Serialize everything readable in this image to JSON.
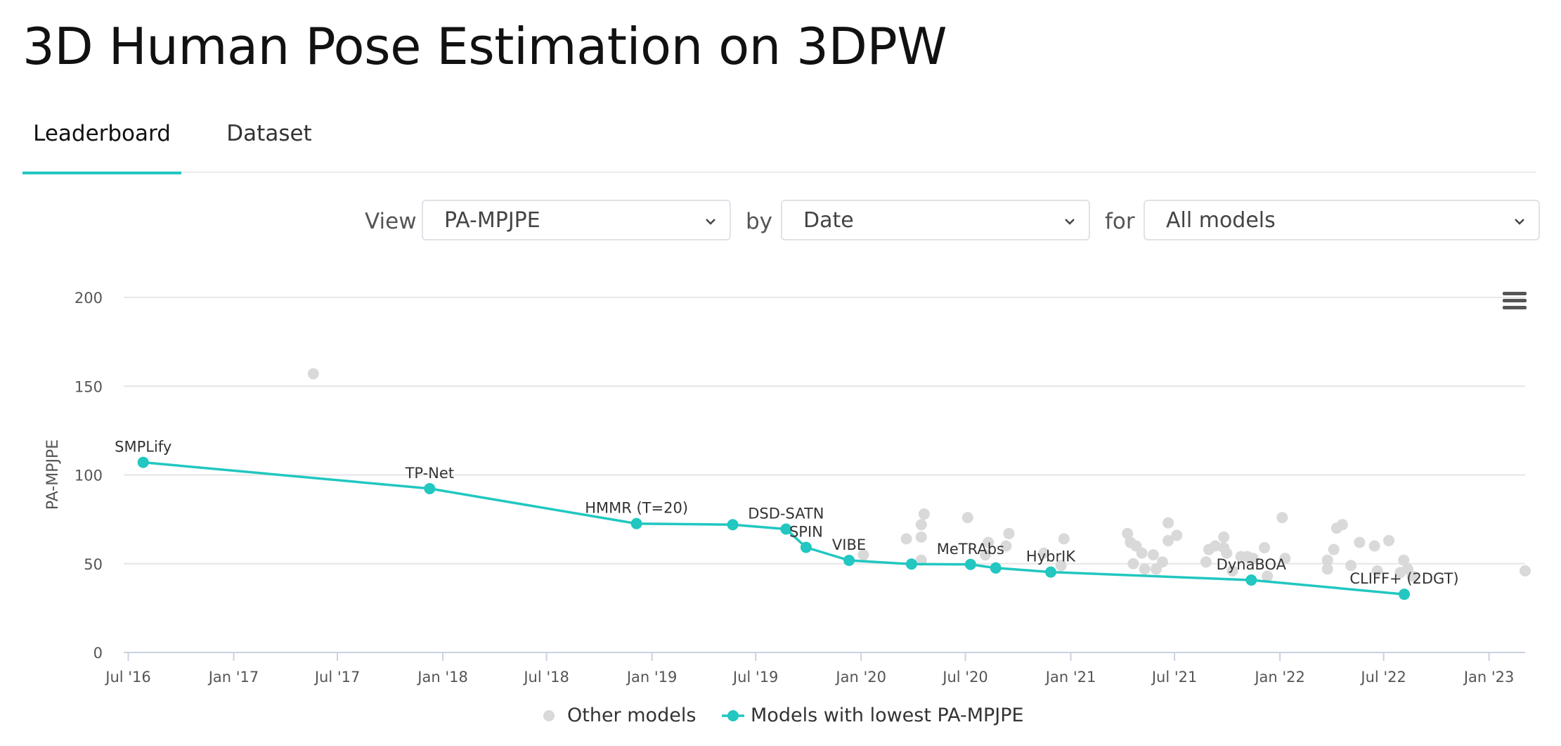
{
  "page": {
    "title": "3D Human Pose Estimation on 3DPW",
    "tabs": [
      {
        "label": "Leaderboard",
        "active": true
      },
      {
        "label": "Dataset",
        "active": false
      }
    ]
  },
  "controls": {
    "view_label": "View",
    "view_value": "PA-MPJPE",
    "by_label": "by",
    "by_value": "Date",
    "for_label": "for",
    "for_value": "All models"
  },
  "colors": {
    "accent": "#21c7c0",
    "other": "#d9d9d9",
    "grid": "#e6e6e6"
  },
  "chart_data": {
    "type": "scatter",
    "title": "",
    "ylabel": "PA-MPJPE",
    "xlabel": "",
    "ylim": [
      0,
      200
    ],
    "xlim": [
      "2016-06-23",
      "2023-03-05"
    ],
    "yticks": [
      "0",
      "50",
      "100",
      "150",
      "200"
    ],
    "xticks": [
      {
        "label": "Jul '16",
        "date": "2016-07-01"
      },
      {
        "label": "Jan '17",
        "date": "2017-01-01"
      },
      {
        "label": "Jul '17",
        "date": "2017-07-01"
      },
      {
        "label": "Jan '18",
        "date": "2018-01-01"
      },
      {
        "label": "Jul '18",
        "date": "2018-07-01"
      },
      {
        "label": "Jan '19",
        "date": "2019-01-01"
      },
      {
        "label": "Jul '19",
        "date": "2019-07-01"
      },
      {
        "label": "Jan '20",
        "date": "2020-01-01"
      },
      {
        "label": "Jul '20",
        "date": "2020-07-01"
      },
      {
        "label": "Jan '21",
        "date": "2021-01-01"
      },
      {
        "label": "Jul '21",
        "date": "2021-07-01"
      },
      {
        "label": "Jan '22",
        "date": "2022-01-01"
      },
      {
        "label": "Jul '22",
        "date": "2022-07-01"
      },
      {
        "label": "Jan '23",
        "date": "2023-01-01"
      }
    ],
    "legend": [
      {
        "name": "Other models",
        "kind": "dot"
      },
      {
        "name": "Models with lowest PA-MPJPE",
        "kind": "line"
      }
    ],
    "legend_position": "bottom-center",
    "series": [
      {
        "name": "Models with lowest PA-MPJPE",
        "points": [
          {
            "date": "2016-07-27",
            "y": 107.1,
            "label": "SMPLify"
          },
          {
            "date": "2017-12-09",
            "y": 92.3,
            "label": "TP-Net"
          },
          {
            "date": "2018-12-05",
            "y": 72.6,
            "label": "HMMR (T=20)"
          },
          {
            "date": "2019-05-22",
            "y": 72.0,
            "label": ""
          },
          {
            "date": "2019-08-23",
            "y": 69.5,
            "label": "DSD-SATN"
          },
          {
            "date": "2019-09-27",
            "y": 59.2,
            "label": "SPIN"
          },
          {
            "date": "2019-12-11",
            "y": 51.9,
            "label": "VIBE"
          },
          {
            "date": "2020-03-29",
            "y": 49.8,
            "label": ""
          },
          {
            "date": "2020-07-10",
            "y": 49.6,
            "label": "MeTRAbs"
          },
          {
            "date": "2020-08-23",
            "y": 47.6,
            "label": ""
          },
          {
            "date": "2020-11-27",
            "y": 45.3,
            "label": "HybrIK"
          },
          {
            "date": "2021-11-12",
            "y": 40.8,
            "label": "DynaBOA"
          },
          {
            "date": "2022-08-06",
            "y": 32.8,
            "label": "CLIFF+ (2DGT)"
          }
        ]
      },
      {
        "name": "Other models",
        "points": [
          {
            "date": "2017-05-20",
            "y": 157
          },
          {
            "date": "2020-01-05",
            "y": 55
          },
          {
            "date": "2020-03-20",
            "y": 64
          },
          {
            "date": "2020-04-15",
            "y": 52
          },
          {
            "date": "2020-04-15",
            "y": 65
          },
          {
            "date": "2020-04-15",
            "y": 72
          },
          {
            "date": "2020-04-20",
            "y": 78
          },
          {
            "date": "2020-07-05",
            "y": 76
          },
          {
            "date": "2020-08-05",
            "y": 55
          },
          {
            "date": "2020-08-10",
            "y": 62
          },
          {
            "date": "2020-09-10",
            "y": 60
          },
          {
            "date": "2020-09-15",
            "y": 67
          },
          {
            "date": "2020-11-15",
            "y": 56
          },
          {
            "date": "2020-12-20",
            "y": 64
          },
          {
            "date": "2020-12-15",
            "y": 49
          },
          {
            "date": "2021-04-10",
            "y": 67
          },
          {
            "date": "2021-04-15",
            "y": 62
          },
          {
            "date": "2021-04-25",
            "y": 60
          },
          {
            "date": "2021-04-20",
            "y": 50
          },
          {
            "date": "2021-05-05",
            "y": 56
          },
          {
            "date": "2021-05-10",
            "y": 47
          },
          {
            "date": "2021-05-25",
            "y": 55
          },
          {
            "date": "2021-05-30",
            "y": 47
          },
          {
            "date": "2021-06-10",
            "y": 51
          },
          {
            "date": "2021-06-20",
            "y": 73
          },
          {
            "date": "2021-06-20",
            "y": 63
          },
          {
            "date": "2021-07-05",
            "y": 66
          },
          {
            "date": "2021-08-25",
            "y": 51
          },
          {
            "date": "2021-08-30",
            "y": 58
          },
          {
            "date": "2021-09-10",
            "y": 60
          },
          {
            "date": "2021-09-25",
            "y": 65
          },
          {
            "date": "2021-09-25",
            "y": 59
          },
          {
            "date": "2021-09-30",
            "y": 56
          },
          {
            "date": "2021-10-10",
            "y": 46
          },
          {
            "date": "2021-10-25",
            "y": 54
          },
          {
            "date": "2021-11-05",
            "y": 54
          },
          {
            "date": "2021-11-15",
            "y": 53
          },
          {
            "date": "2021-12-05",
            "y": 59
          },
          {
            "date": "2021-12-10",
            "y": 43
          },
          {
            "date": "2022-01-05",
            "y": 76
          },
          {
            "date": "2022-01-10",
            "y": 53
          },
          {
            "date": "2022-03-25",
            "y": 47
          },
          {
            "date": "2022-03-25",
            "y": 52
          },
          {
            "date": "2022-04-05",
            "y": 58
          },
          {
            "date": "2022-04-10",
            "y": 70
          },
          {
            "date": "2022-04-20",
            "y": 72
          },
          {
            "date": "2022-05-05",
            "y": 49
          },
          {
            "date": "2022-05-20",
            "y": 62
          },
          {
            "date": "2022-06-15",
            "y": 60
          },
          {
            "date": "2022-06-20",
            "y": 46
          },
          {
            "date": "2022-07-10",
            "y": 63
          },
          {
            "date": "2022-07-30",
            "y": 45
          },
          {
            "date": "2022-08-05",
            "y": 52
          },
          {
            "date": "2022-08-12",
            "y": 47
          },
          {
            "date": "2022-08-20",
            "y": 43
          },
          {
            "date": "2023-03-05",
            "y": 46
          }
        ]
      }
    ]
  }
}
